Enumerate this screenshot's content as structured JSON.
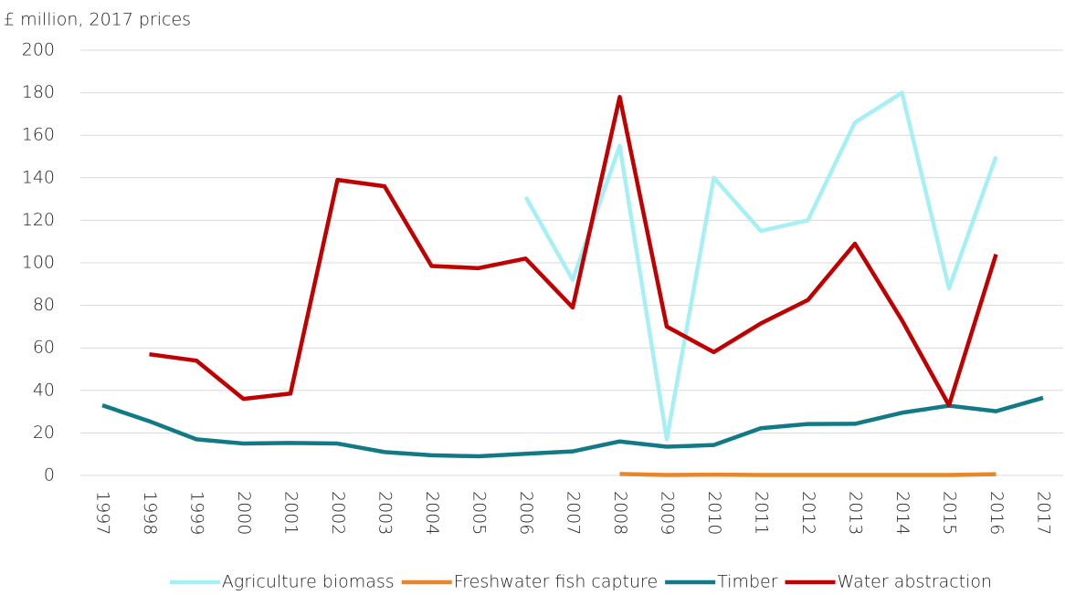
{
  "chart_data": {
    "type": "line",
    "title": "£ million, 2017 prices",
    "categories": [
      "1997",
      "1998",
      "1999",
      "2000",
      "2001",
      "2002",
      "2003",
      "2004",
      "2005",
      "2006",
      "2007",
      "2008",
      "2009",
      "2010",
      "2011",
      "2012",
      "2013",
      "2014",
      "2015",
      "2016",
      "2017"
    ],
    "series": [
      {
        "name": "Agriculture biomass",
        "color": "#a6f0f5",
        "values": [
          null,
          null,
          null,
          null,
          null,
          null,
          null,
          null,
          null,
          131,
          92,
          155,
          17,
          140,
          115,
          120,
          166,
          180,
          88,
          150,
          null
        ]
      },
      {
        "name": "Freshwater fish capture",
        "color": "#e8862a",
        "values": [
          null,
          null,
          null,
          null,
          null,
          null,
          null,
          null,
          null,
          null,
          null,
          0.7,
          0.2,
          0.4,
          0.2,
          0.2,
          0.2,
          0.2,
          0.2,
          0.6,
          null
        ]
      },
      {
        "name": "Timber",
        "color": "#127a86",
        "values": [
          33,
          25.5,
          17,
          15,
          15.3,
          15,
          11,
          9.5,
          9,
          10.2,
          11.3,
          16,
          13.5,
          14.3,
          22.2,
          24.2,
          24.3,
          29.5,
          32.8,
          30.2,
          36.5
        ]
      },
      {
        "name": "Water abstraction",
        "color": "#c00000",
        "values": [
          null,
          57,
          54,
          36,
          38.5,
          139,
          136,
          98.5,
          97.5,
          102,
          79,
          178,
          70,
          58,
          71.5,
          82.5,
          109,
          73,
          33,
          104,
          null
        ]
      }
    ],
    "ylim": [
      0,
      200
    ],
    "yticks": [
      0,
      20,
      40,
      60,
      80,
      100,
      120,
      140,
      160,
      180,
      200
    ],
    "grid": true,
    "legend": "bottom"
  }
}
